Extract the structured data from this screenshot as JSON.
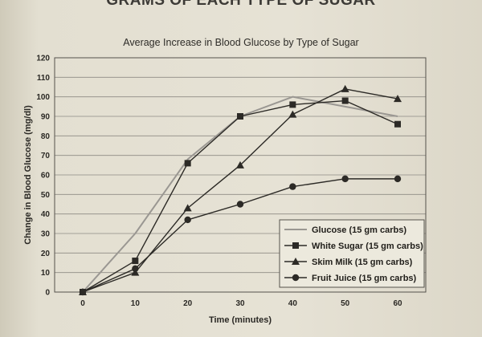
{
  "page": {
    "heading": "GRAMS OF EACH TYPE OF SUGAR"
  },
  "chart_data": {
    "type": "line",
    "title": "Average Increase in Blood Glucose by Type of Sugar",
    "xlabel": "Time (minutes)",
    "ylabel": "Change in Blood Glucose (mg/dl)",
    "x": [
      0,
      10,
      20,
      30,
      40,
      50,
      60
    ],
    "xlim": [
      0,
      60
    ],
    "ylim": [
      0,
      120
    ],
    "yticks": [
      0,
      10,
      20,
      30,
      40,
      50,
      60,
      70,
      80,
      90,
      100,
      110,
      120
    ],
    "grid": true,
    "legend_position": "bottom-right",
    "series": [
      {
        "name": "Glucose (15 gm carbs)",
        "values": [
          0,
          30,
          68,
          90,
          100,
          95,
          90
        ],
        "color": "#9a9792",
        "marker": "none"
      },
      {
        "name": "White Sugar (15 gm carbs)",
        "values": [
          0,
          16,
          66,
          90,
          96,
          98,
          86
        ],
        "color": "#2c2a26",
        "marker": "square"
      },
      {
        "name": "Skim Milk (15 gm carbs)",
        "values": [
          0,
          10,
          43,
          65,
          91,
          104,
          99
        ],
        "color": "#2c2a26",
        "marker": "triangle"
      },
      {
        "name": "Fruit Juice (15 gm carbs)",
        "values": [
          0,
          12,
          37,
          45,
          54,
          58,
          58
        ],
        "color": "#2c2a26",
        "marker": "circle"
      }
    ]
  }
}
